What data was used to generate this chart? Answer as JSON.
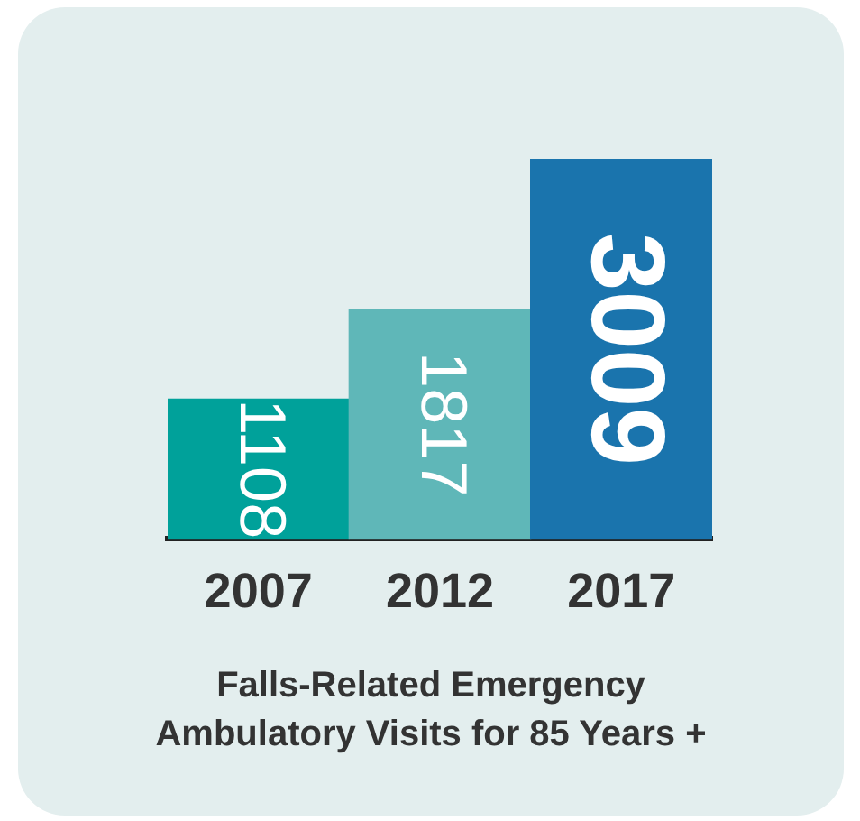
{
  "chart_data": {
    "type": "bar",
    "title": "Falls-Related Emergency Ambulatory Visits for 85 Years +",
    "categories": [
      "2007",
      "2012",
      "2017"
    ],
    "values": [
      1108,
      1817,
      3009
    ],
    "colors": [
      "#00a19a",
      "#5fb7b8",
      "#1a74ad"
    ],
    "data_labels": true,
    "grid": false,
    "legend": false
  }
}
